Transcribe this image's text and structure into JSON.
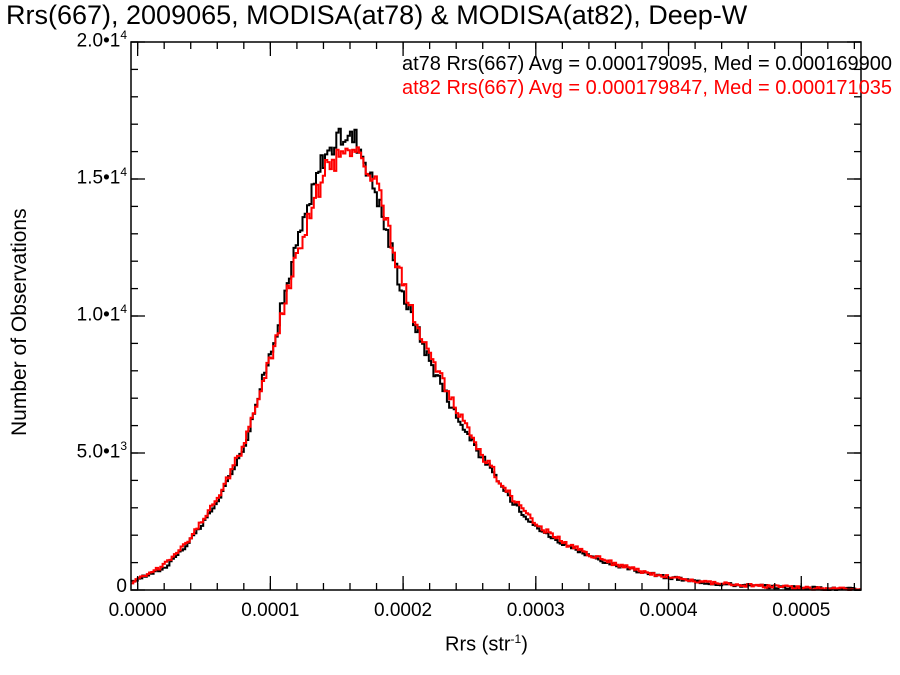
{
  "chart_data": {
    "type": "line",
    "title": "Rrs(667), 2009065, MODISA(at78) & MODISA(at82), Deep-W",
    "xlabel": "Rrs (str",
    "xlabel_superscript": "-1",
    "xlabel_suffix": ")",
    "ylabel": "Number of Observations",
    "xlim": [
      -5e-06,
      0.000545
    ],
    "ylim": [
      0,
      20000
    ],
    "grid": false,
    "legend_position": "top-right",
    "x_tick_labels": [
      "0.0000",
      "0.0001",
      "0.0002",
      "0.0003",
      "0.0004",
      "0.0005"
    ],
    "x_tick_values": [
      0.0,
      0.0001,
      0.0002,
      0.0003,
      0.0004,
      0.0005
    ],
    "y_tick_values": [
      0,
      5000,
      10000,
      15000,
      20000
    ],
    "y_tick_labels": [
      {
        "mantissa": "0",
        "exponent": ""
      },
      {
        "mantissa": "5.0•1",
        "exponent": "3"
      },
      {
        "mantissa": "1.0•1",
        "exponent": "4"
      },
      {
        "mantissa": "1.5•1",
        "exponent": "4"
      },
      {
        "mantissa": "2.0•1",
        "exponent": "4"
      }
    ],
    "series": [
      {
        "name": "at78",
        "legend_text": "at78 Rrs(667) Avg = 0.000179095, Med = 0.000169900",
        "color": "#000000",
        "x": [
          -5e-06,
          0.0,
          2e-05,
          4e-05,
          6e-05,
          8e-05,
          0.0001,
          0.00012,
          0.00014,
          0.000155,
          0.000165,
          0.00018,
          0.0002,
          0.00022,
          0.00024,
          0.00026,
          0.00028,
          0.0003,
          0.00032,
          0.00034,
          0.00036,
          0.00038,
          0.0004,
          0.00042,
          0.00044,
          0.00046,
          0.00048,
          0.0005,
          0.00052,
          0.000545
        ],
        "values": [
          250,
          400,
          800,
          1800,
          3200,
          5200,
          8600,
          12600,
          15800,
          16600,
          16500,
          14500,
          10800,
          8400,
          6400,
          4800,
          3400,
          2300,
          1700,
          1250,
          900,
          650,
          450,
          320,
          220,
          160,
          110,
          80,
          50,
          20
        ]
      },
      {
        "name": "at82",
        "legend_text": "at82 Rrs(667) Avg = 0.000179847, Med = 0.000171035",
        "color": "#ff0000",
        "x": [
          -5e-06,
          0.0,
          2e-05,
          4e-05,
          6e-05,
          8e-05,
          0.0001,
          0.00012,
          0.00014,
          0.000155,
          0.000165,
          0.00018,
          0.0002,
          0.00022,
          0.00024,
          0.00026,
          0.00028,
          0.0003,
          0.00032,
          0.00034,
          0.00036,
          0.00038,
          0.0004,
          0.00042,
          0.00044,
          0.00046,
          0.00048,
          0.0005,
          0.00052,
          0.000545
        ],
        "values": [
          280,
          420,
          900,
          1900,
          3300,
          5300,
          8400,
          12200,
          15200,
          16000,
          16000,
          14900,
          11100,
          8600,
          6600,
          4900,
          3500,
          2400,
          1750,
          1300,
          950,
          680,
          480,
          340,
          240,
          170,
          120,
          85,
          55,
          25
        ]
      }
    ]
  }
}
